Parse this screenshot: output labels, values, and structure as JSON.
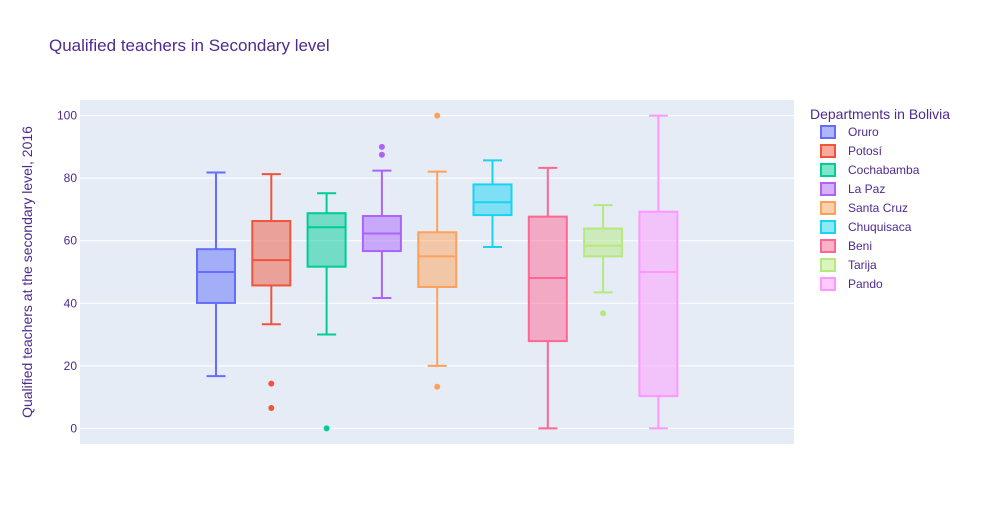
{
  "chart_data": {
    "type": "box",
    "title": "Qualified teachers in Secondary level",
    "xlabel": "",
    "ylabel": "Qualified teachers at the secondary level, 2016",
    "ylim": [
      -5,
      105
    ],
    "yticks": [
      0,
      20,
      40,
      60,
      80,
      100
    ],
    "grid": true,
    "legend": {
      "title": "Departments in Bolivia",
      "position": "right"
    },
    "series": [
      {
        "name": "Oruro",
        "color": "#636efa",
        "min": 16.7,
        "q1": 40.1,
        "median": 50.0,
        "q3": 57.3,
        "max": 81.8,
        "outliers": []
      },
      {
        "name": "Potosí",
        "color": "#ef553b",
        "min": 33.3,
        "q1": 45.7,
        "median": 53.8,
        "q3": 66.3,
        "max": 81.3,
        "outliers": [
          14.3,
          6.5
        ]
      },
      {
        "name": "Cochabamba",
        "color": "#00cc96",
        "min": 30.0,
        "q1": 51.7,
        "median": 64.3,
        "q3": 68.8,
        "max": 75.2,
        "outliers": [
          0
        ]
      },
      {
        "name": "La Paz",
        "color": "#ab63fa",
        "min": 41.7,
        "q1": 56.7,
        "median": 62.3,
        "q3": 67.9,
        "max": 82.4,
        "outliers": [
          87.5,
          90.0
        ]
      },
      {
        "name": "Santa Cruz",
        "color": "#ffa15a",
        "min": 20.0,
        "q1": 45.2,
        "median": 55.0,
        "q3": 62.7,
        "max": 82.1,
        "outliers": [
          100.0,
          13.3
        ]
      },
      {
        "name": "Chuquisaca",
        "color": "#19d3f3",
        "min": 58.0,
        "q1": 68.2,
        "median": 72.3,
        "q3": 78.0,
        "max": 85.7,
        "outliers": []
      },
      {
        "name": "Beni",
        "color": "#ff6692",
        "min": 0,
        "q1": 27.9,
        "median": 48.1,
        "q3": 67.7,
        "max": 83.3,
        "outliers": []
      },
      {
        "name": "Tarija",
        "color": "#b6e880",
        "min": 43.5,
        "q1": 55.0,
        "median": 58.4,
        "q3": 63.9,
        "max": 71.4,
        "outliers": [
          36.8
        ]
      },
      {
        "name": "Pando",
        "color": "#ff97ff",
        "min": 0,
        "q1": 10.3,
        "median": 50.0,
        "q3": 69.3,
        "max": 100.0,
        "outliers": []
      }
    ]
  }
}
